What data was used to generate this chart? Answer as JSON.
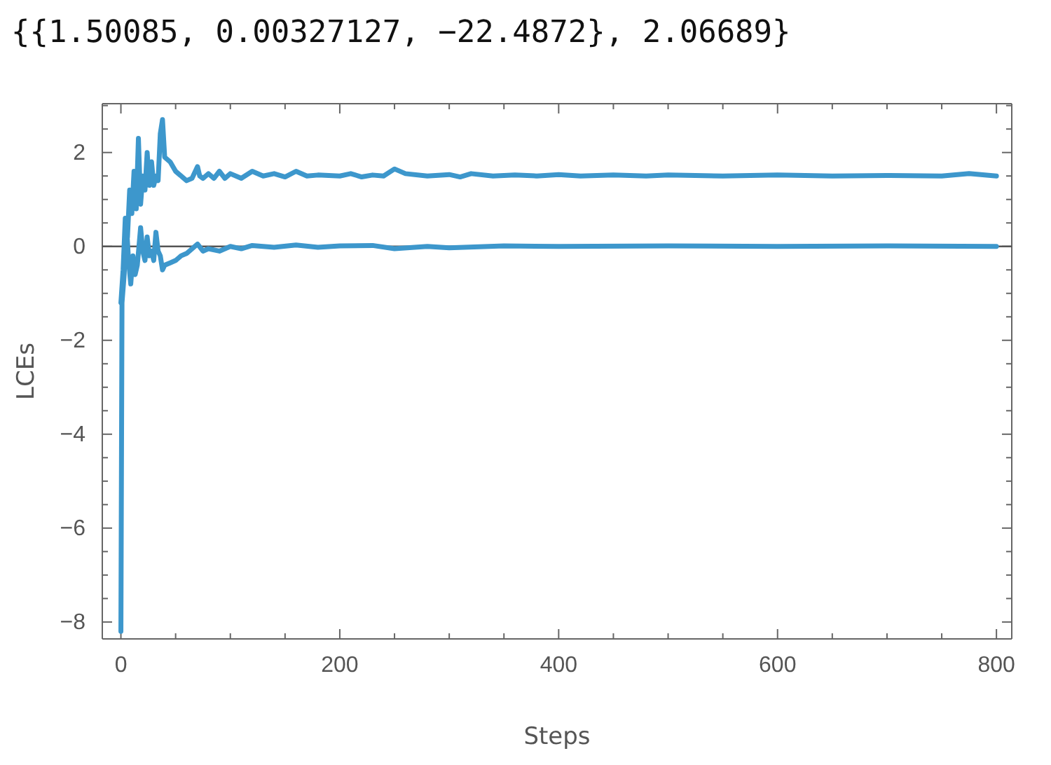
{
  "chart_data": {
    "type": "line",
    "title": "{{1.50085, 0.00327127, −22.4872}, 2.06689}",
    "xlabel": "Steps",
    "ylabel": "LCEs",
    "xlim": [
      -17,
      814
    ],
    "ylim": [
      -8.36,
      3.04
    ],
    "xticks": [
      0,
      {
        "value": 50,
        "label": null
      },
      {
        "value": 100,
        "label": null
      },
      {
        "value": 150,
        "label": null
      },
      200,
      {
        "value": 250,
        "label": null
      },
      {
        "value": 300,
        "label": null
      },
      {
        "value": 350,
        "label": null
      },
      400,
      {
        "value": 450,
        "label": null
      },
      {
        "value": 500,
        "label": null
      },
      {
        "value": 550,
        "label": null
      },
      600,
      {
        "value": 650,
        "label": null
      },
      {
        "value": 700,
        "label": null
      },
      {
        "value": 750,
        "label": null
      },
      800
    ],
    "yticks": [
      -8,
      {
        "value": -7.5,
        "label": null
      },
      {
        "value": -7,
        "label": null
      },
      {
        "value": -6.5,
        "label": null
      },
      -6,
      {
        "value": -5.5,
        "label": null
      },
      {
        "value": -5,
        "label": null
      },
      {
        "value": -4.5,
        "label": null
      },
      -4,
      {
        "value": -3.5,
        "label": null
      },
      {
        "value": -3,
        "label": null
      },
      {
        "value": -2.5,
        "label": null
      },
      -2,
      {
        "value": -1.5,
        "label": null
      },
      {
        "value": -1,
        "label": null
      },
      {
        "value": -0.5,
        "label": null
      },
      0,
      {
        "value": 0.5,
        "label": null
      },
      {
        "value": 1,
        "label": null
      },
      {
        "value": 1.5,
        "label": null
      },
      2,
      {
        "value": 2.5,
        "label": null
      },
      {
        "value": 3,
        "label": null
      }
    ],
    "grid": false,
    "marker": "none",
    "line_style": "solid",
    "ref_lines": [
      {
        "axis": "y",
        "value": 0,
        "label": null,
        "color": "#555555"
      }
    ],
    "series": [
      {
        "color": "#3d97cc",
        "x": [
          0,
          2,
          4,
          6,
          8,
          10,
          12,
          14,
          16,
          18,
          20,
          22,
          24,
          26,
          28,
          30,
          32,
          34,
          36,
          38,
          40,
          45,
          50,
          55,
          60,
          65,
          70,
          72,
          75,
          80,
          85,
          90,
          95,
          100,
          110,
          120,
          130,
          140,
          150,
          160,
          170,
          180,
          200,
          210,
          220,
          230,
          240,
          250,
          260,
          280,
          300,
          310,
          320,
          340,
          360,
          380,
          400,
          420,
          450,
          480,
          500,
          550,
          600,
          650,
          700,
          750,
          775,
          800
        ],
        "values": [
          -1.2,
          -0.5,
          0.6,
          0.2,
          1.2,
          0.7,
          1.6,
          0.8,
          2.3,
          0.9,
          1.5,
          1.2,
          2.0,
          1.3,
          1.8,
          1.3,
          1.5,
          1.4,
          2.4,
          2.7,
          1.9,
          1.8,
          1.6,
          1.5,
          1.4,
          1.45,
          1.7,
          1.5,
          1.45,
          1.55,
          1.45,
          1.6,
          1.45,
          1.55,
          1.45,
          1.6,
          1.5,
          1.55,
          1.48,
          1.6,
          1.5,
          1.52,
          1.5,
          1.55,
          1.48,
          1.52,
          1.5,
          1.65,
          1.55,
          1.5,
          1.53,
          1.48,
          1.55,
          1.5,
          1.52,
          1.5,
          1.53,
          1.5,
          1.52,
          1.5,
          1.52,
          1.5,
          1.52,
          1.5,
          1.51,
          1.5,
          1.55,
          1.5
        ]
      },
      {
        "color": "#3d97cc",
        "x": [
          0,
          1,
          3,
          5,
          7,
          9,
          11,
          13,
          15,
          18,
          20,
          22,
          24,
          26,
          28,
          30,
          32,
          34,
          36,
          38,
          40,
          45,
          50,
          55,
          60,
          65,
          70,
          75,
          80,
          90,
          100,
          110,
          120,
          140,
          160,
          180,
          200,
          230,
          250,
          280,
          300,
          350,
          400,
          500,
          600,
          700,
          800
        ],
        "values": [
          -8.2,
          -1.2,
          -0.6,
          0.5,
          -0.3,
          -0.8,
          -0.2,
          -0.6,
          -0.4,
          0.4,
          -0.1,
          -0.3,
          0.2,
          -0.2,
          -0.1,
          -0.3,
          0.3,
          -0.1,
          -0.2,
          -0.5,
          -0.4,
          -0.35,
          -0.3,
          -0.2,
          -0.15,
          -0.05,
          0.05,
          -0.1,
          -0.05,
          -0.1,
          0,
          -0.05,
          0.02,
          -0.02,
          0.03,
          -0.02,
          0.01,
          0.02,
          -0.05,
          0,
          -0.03,
          0.01,
          0,
          0.01,
          0,
          0.01,
          0
        ]
      }
    ]
  }
}
